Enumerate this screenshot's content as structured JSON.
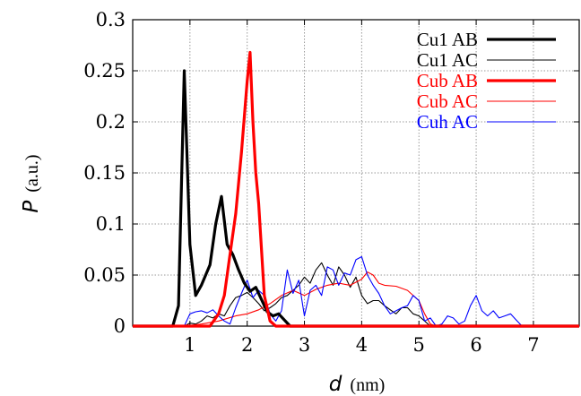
{
  "chart_data": {
    "type": "line",
    "xlabel": "d",
    "xlabel_unit": "(nm)",
    "ylabel": "P",
    "ylabel_unit": "(a.u.)",
    "xlim": [
      0,
      7.8
    ],
    "ylim": [
      0,
      0.3
    ],
    "x_ticks": [
      1,
      2,
      3,
      4,
      5,
      6,
      7
    ],
    "x_tick_labels": [
      "1",
      "2",
      "3",
      "4",
      "5",
      "6",
      "7"
    ],
    "y_ticks": [
      0,
      0.05,
      0.1,
      0.15,
      0.2,
      0.25,
      0.3
    ],
    "y_tick_labels": [
      "0",
      "0.05",
      "0.1",
      "0.15",
      "0.2",
      "0.25",
      "0.3"
    ],
    "grid": true,
    "legend_position": "top-right",
    "series": [
      {
        "name": "Cu1 AB",
        "color": "#000000",
        "width": "thick",
        "points": [
          [
            0,
            0
          ],
          [
            0.7,
            0
          ],
          [
            0.8,
            0.02
          ],
          [
            0.9,
            0.25
          ],
          [
            1.0,
            0.08
          ],
          [
            1.1,
            0.03
          ],
          [
            1.2,
            0.04
          ],
          [
            1.35,
            0.06
          ],
          [
            1.45,
            0.1
          ],
          [
            1.55,
            0.127
          ],
          [
            1.65,
            0.08
          ],
          [
            1.75,
            0.07
          ],
          [
            1.85,
            0.055
          ],
          [
            1.95,
            0.042
          ],
          [
            2.05,
            0.034
          ],
          [
            2.15,
            0.038
          ],
          [
            2.25,
            0.026
          ],
          [
            2.35,
            0.014
          ],
          [
            2.45,
            0.01
          ],
          [
            2.55,
            0.012
          ],
          [
            2.65,
            0.006
          ],
          [
            2.75,
            0
          ],
          [
            7.8,
            0
          ]
        ]
      },
      {
        "name": "Cu1 AC",
        "color": "#000000",
        "width": "thin",
        "points": [
          [
            0,
            0
          ],
          [
            0.9,
            0
          ],
          [
            1.0,
            0.003
          ],
          [
            1.1,
            0.002
          ],
          [
            1.2,
            0.005
          ],
          [
            1.3,
            0.01
          ],
          [
            1.4,
            0.008
          ],
          [
            1.5,
            0.012
          ],
          [
            1.6,
            0.01
          ],
          [
            1.7,
            0.02
          ],
          [
            1.8,
            0.028
          ],
          [
            1.9,
            0.03
          ],
          [
            2.0,
            0.033
          ],
          [
            2.1,
            0.028
          ],
          [
            2.2,
            0.022
          ],
          [
            2.3,
            0.015
          ],
          [
            2.4,
            0.018
          ],
          [
            2.5,
            0.022
          ],
          [
            2.6,
            0.028
          ],
          [
            2.7,
            0.03
          ],
          [
            2.8,
            0.035
          ],
          [
            2.9,
            0.04
          ],
          [
            3.0,
            0.048
          ],
          [
            3.1,
            0.042
          ],
          [
            3.2,
            0.055
          ],
          [
            3.3,
            0.062
          ],
          [
            3.4,
            0.05
          ],
          [
            3.5,
            0.04
          ],
          [
            3.6,
            0.058
          ],
          [
            3.7,
            0.05
          ],
          [
            3.8,
            0.038
          ],
          [
            3.9,
            0.048
          ],
          [
            4.0,
            0.03
          ],
          [
            4.1,
            0.022
          ],
          [
            4.2,
            0.025
          ],
          [
            4.3,
            0.025
          ],
          [
            4.4,
            0.02
          ],
          [
            4.5,
            0.016
          ],
          [
            4.6,
            0.012
          ],
          [
            4.7,
            0.018
          ],
          [
            4.8,
            0.018
          ],
          [
            4.9,
            0.012
          ],
          [
            5.0,
            0.01
          ],
          [
            5.1,
            0.005
          ],
          [
            5.2,
            0
          ],
          [
            7.8,
            0
          ]
        ]
      },
      {
        "name": "Cub AB",
        "color": "#ff0000",
        "width": "thick",
        "points": [
          [
            0,
            0
          ],
          [
            1.35,
            0
          ],
          [
            1.5,
            0.012
          ],
          [
            1.6,
            0.03
          ],
          [
            1.7,
            0.07
          ],
          [
            1.8,
            0.11
          ],
          [
            1.9,
            0.17
          ],
          [
            2.0,
            0.24
          ],
          [
            2.05,
            0.268
          ],
          [
            2.1,
            0.2
          ],
          [
            2.15,
            0.15
          ],
          [
            2.2,
            0.12
          ],
          [
            2.3,
            0.03
          ],
          [
            2.4,
            0.005
          ],
          [
            2.5,
            0
          ],
          [
            7.8,
            0
          ]
        ]
      },
      {
        "name": "Cub AC",
        "color": "#ff0000",
        "width": "thin",
        "points": [
          [
            0,
            0
          ],
          [
            0.9,
            0
          ],
          [
            1.2,
            0.002
          ],
          [
            1.5,
            0.005
          ],
          [
            1.8,
            0.01
          ],
          [
            2.0,
            0.012
          ],
          [
            2.2,
            0.016
          ],
          [
            2.4,
            0.022
          ],
          [
            2.6,
            0.03
          ],
          [
            2.8,
            0.035
          ],
          [
            3.0,
            0.03
          ],
          [
            3.2,
            0.036
          ],
          [
            3.4,
            0.04
          ],
          [
            3.6,
            0.042
          ],
          [
            3.8,
            0.04
          ],
          [
            4.0,
            0.046
          ],
          [
            4.1,
            0.053
          ],
          [
            4.2,
            0.05
          ],
          [
            4.3,
            0.042
          ],
          [
            4.4,
            0.04
          ],
          [
            4.6,
            0.039
          ],
          [
            4.8,
            0.035
          ],
          [
            5.0,
            0.025
          ],
          [
            5.1,
            0.012
          ],
          [
            5.2,
            0.002
          ],
          [
            5.3,
            0
          ],
          [
            7.8,
            0
          ]
        ]
      },
      {
        "name": "Cuh AC",
        "color": "#0000ff",
        "width": "thin",
        "points": [
          [
            0,
            0
          ],
          [
            0.9,
            0
          ],
          [
            1.0,
            0.012
          ],
          [
            1.1,
            0.014
          ],
          [
            1.2,
            0.015
          ],
          [
            1.3,
            0.013
          ],
          [
            1.4,
            0.016
          ],
          [
            1.5,
            0.01
          ],
          [
            1.6,
            0.005
          ],
          [
            1.7,
            0.002
          ],
          [
            1.8,
            0.018
          ],
          [
            1.9,
            0.032
          ],
          [
            2.0,
            0.045
          ],
          [
            2.1,
            0.028
          ],
          [
            2.2,
            0.035
          ],
          [
            2.3,
            0.03
          ],
          [
            2.4,
            0.012
          ],
          [
            2.5,
            0.005
          ],
          [
            2.6,
            0.015
          ],
          [
            2.7,
            0.055
          ],
          [
            2.8,
            0.032
          ],
          [
            2.9,
            0.045
          ],
          [
            3.0,
            0.01
          ],
          [
            3.1,
            0.035
          ],
          [
            3.2,
            0.04
          ],
          [
            3.3,
            0.03
          ],
          [
            3.4,
            0.058
          ],
          [
            3.5,
            0.055
          ],
          [
            3.6,
            0.04
          ],
          [
            3.7,
            0.052
          ],
          [
            3.8,
            0.05
          ],
          [
            3.9,
            0.065
          ],
          [
            4.0,
            0.068
          ],
          [
            4.1,
            0.05
          ],
          [
            4.2,
            0.04
          ],
          [
            4.3,
            0.032
          ],
          [
            4.4,
            0.02
          ],
          [
            4.5,
            0.012
          ],
          [
            4.6,
            0.015
          ],
          [
            4.7,
            0.018
          ],
          [
            4.8,
            0.02
          ],
          [
            4.9,
            0.03
          ],
          [
            5.0,
            0.025
          ],
          [
            5.1,
            0.005
          ],
          [
            5.2,
            0.008
          ],
          [
            5.3,
            0
          ],
          [
            5.4,
            0.002
          ],
          [
            5.5,
            0.01
          ],
          [
            5.6,
            0.008
          ],
          [
            5.7,
            0.002
          ],
          [
            5.8,
            0.005
          ],
          [
            5.9,
            0.02
          ],
          [
            6.0,
            0.03
          ],
          [
            6.1,
            0.015
          ],
          [
            6.2,
            0.01
          ],
          [
            6.3,
            0.015
          ],
          [
            6.4,
            0.008
          ],
          [
            6.5,
            0.01
          ],
          [
            6.6,
            0.012
          ],
          [
            6.7,
            0.006
          ],
          [
            6.8,
            0
          ],
          [
            7.8,
            0
          ]
        ]
      }
    ]
  }
}
